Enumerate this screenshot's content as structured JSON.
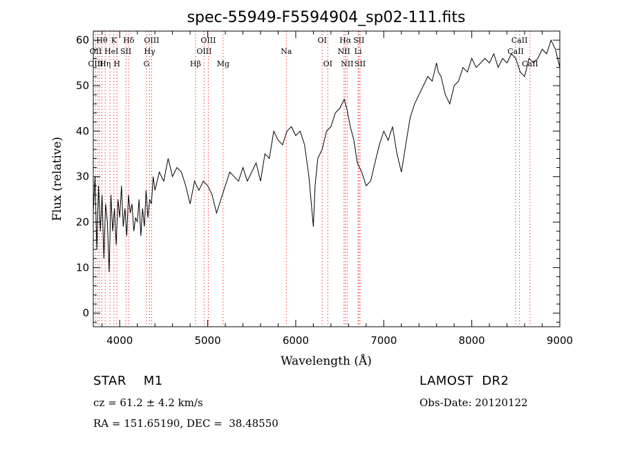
{
  "chart_data": {
    "type": "line",
    "title": "spec-55949-F5594904_sp02-111.fits",
    "xlabel": "Wavelength (Å)",
    "ylabel": "Flux (relative)",
    "xlim": [
      3700,
      9000
    ],
    "ylim": [
      -3,
      62
    ],
    "xticks": [
      "4000",
      "5000",
      "6000",
      "7000",
      "8000",
      "9000"
    ],
    "yticks": [
      "0",
      "10",
      "20",
      "30",
      "40",
      "50",
      "60"
    ],
    "grid": false,
    "series": [
      {
        "x": [
          3700,
          3720,
          3740,
          3760,
          3780,
          3800,
          3820,
          3840,
          3860,
          3880,
          3900,
          3920,
          3940,
          3960,
          3980,
          4000,
          4020,
          4040,
          4060,
          4080,
          4100,
          4120,
          4140,
          4160,
          4180,
          4200,
          4220,
          4240,
          4260,
          4280,
          4300,
          4320,
          4340,
          4360,
          4380,
          4400,
          4450,
          4500,
          4550,
          4600,
          4650,
          4700,
          4750,
          4800,
          4850,
          4900,
          4950,
          5000,
          5050,
          5100,
          5150,
          5200,
          5250,
          5300,
          5350,
          5400,
          5450,
          5500,
          5550,
          5600,
          5650,
          5700,
          5750,
          5800,
          5850,
          5900,
          5950,
          6000,
          6050,
          6100,
          6150,
          6200,
          6220,
          6250,
          6300,
          6350,
          6400,
          6450,
          6500,
          6550,
          6580,
          6620,
          6660,
          6700,
          6750,
          6800,
          6850,
          6900,
          6950,
          7000,
          7050,
          7100,
          7150,
          7200,
          7250,
          7300,
          7350,
          7400,
          7450,
          7500,
          7550,
          7600,
          7620,
          7650,
          7700,
          7750,
          7800,
          7850,
          7900,
          7950,
          8000,
          8050,
          8100,
          8150,
          8200,
          8250,
          8300,
          8350,
          8400,
          8450,
          8500,
          8550,
          8600,
          8650,
          8700,
          8750,
          8800,
          8850,
          8900,
          8950,
          9000
        ],
        "y": [
          22,
          30,
          14,
          28,
          18,
          26,
          12,
          24,
          20,
          9,
          26,
          18,
          23,
          15,
          25,
          21,
          28,
          19,
          23,
          17,
          26,
          22,
          24,
          18,
          21,
          20,
          25,
          17,
          23,
          19,
          27,
          21,
          25,
          24,
          30,
          27,
          31,
          29,
          34,
          30,
          32,
          31,
          28,
          24,
          29,
          27,
          29,
          28,
          26,
          22,
          25,
          28,
          31,
          30,
          29,
          32,
          29,
          31,
          33,
          29,
          35,
          34,
          40,
          38,
          37,
          40,
          41,
          39,
          40,
          37,
          30,
          19,
          28,
          34,
          36,
          40,
          41,
          44,
          45,
          47,
          45,
          41,
          38,
          33,
          31,
          28,
          29,
          33,
          37,
          40,
          38,
          41,
          35,
          31,
          37,
          43,
          46,
          48,
          50,
          52,
          51,
          55,
          53,
          52,
          48,
          46,
          50,
          51,
          54,
          53,
          56,
          54,
          55,
          56,
          55,
          57,
          54,
          56,
          55,
          57,
          56,
          53,
          52,
          56,
          55,
          56,
          58,
          57,
          60,
          58,
          54
        ]
      }
    ],
    "annotations": [
      {
        "text": "Hθ",
        "x": 3798,
        "row": 1
      },
      {
        "text": "K",
        "x": 3934,
        "row": 1
      },
      {
        "text": "Hδ",
        "x": 4102,
        "row": 1
      },
      {
        "text": "OIII",
        "x": 4363,
        "row": 1
      },
      {
        "text": "OIII",
        "x": 5007,
        "row": 1
      },
      {
        "text": "OI",
        "x": 6300,
        "row": 1
      },
      {
        "text": "Hα",
        "x": 6563,
        "row": 1
      },
      {
        "text": "SII",
        "x": 6717,
        "row": 1
      },
      {
        "text": "CaII",
        "x": 8542,
        "row": 1
      },
      {
        "text": "OII",
        "x": 3727,
        "row": 2
      },
      {
        "text": "He",
        "x": 3889,
        "row": 2
      },
      {
        "text": "I",
        "x": 3968,
        "row": 2
      },
      {
        "text": "SII",
        "x": 4070,
        "row": 2
      },
      {
        "text": "Hγ",
        "x": 4340,
        "row": 2
      },
      {
        "text": "OIII",
        "x": 4959,
        "row": 2
      },
      {
        "text": "Na",
        "x": 5893,
        "row": 2
      },
      {
        "text": "NII",
        "x": 6548,
        "row": 2
      },
      {
        "text": "Li",
        "x": 6708,
        "row": 2
      },
      {
        "text": "CaII",
        "x": 8498,
        "row": 2
      },
      {
        "text": "OIII",
        "x": 3727,
        "row": 3
      },
      {
        "text": "Hη",
        "x": 3835,
        "row": 3
      },
      {
        "text": "H",
        "x": 3968,
        "row": 3
      },
      {
        "text": "G",
        "x": 4304,
        "row": 3
      },
      {
        "text": "Hβ",
        "x": 4861,
        "row": 3
      },
      {
        "text": "Mg",
        "x": 5175,
        "row": 3
      },
      {
        "text": "OI",
        "x": 6364,
        "row": 3
      },
      {
        "text": "NII",
        "x": 6584,
        "row": 3
      },
      {
        "text": "SII",
        "x": 6731,
        "row": 3
      },
      {
        "text": "CaII",
        "x": 8662,
        "row": 3
      }
    ],
    "line_markers_x": [
      3727,
      3750,
      3770,
      3798,
      3835,
      3889,
      3934,
      3968,
      4070,
      4102,
      4304,
      4340,
      4363,
      4861,
      4959,
      5007,
      5175,
      5893,
      6300,
      6364,
      6548,
      6563,
      6584,
      6708,
      6717,
      6731,
      8498,
      8542,
      8662
    ]
  },
  "info": {
    "object": "STAR    M1",
    "redshift": "cz = 61.2 ± 4.2 km/s",
    "coords": "RA = 151.65190, DEC =  38.48550",
    "survey": "LAMOST  DR2",
    "obs_date": "Obs-Date: 20120122"
  },
  "colors": {
    "spectrum": "#000000",
    "markers": "#ff3030",
    "axes": "#000000"
  }
}
